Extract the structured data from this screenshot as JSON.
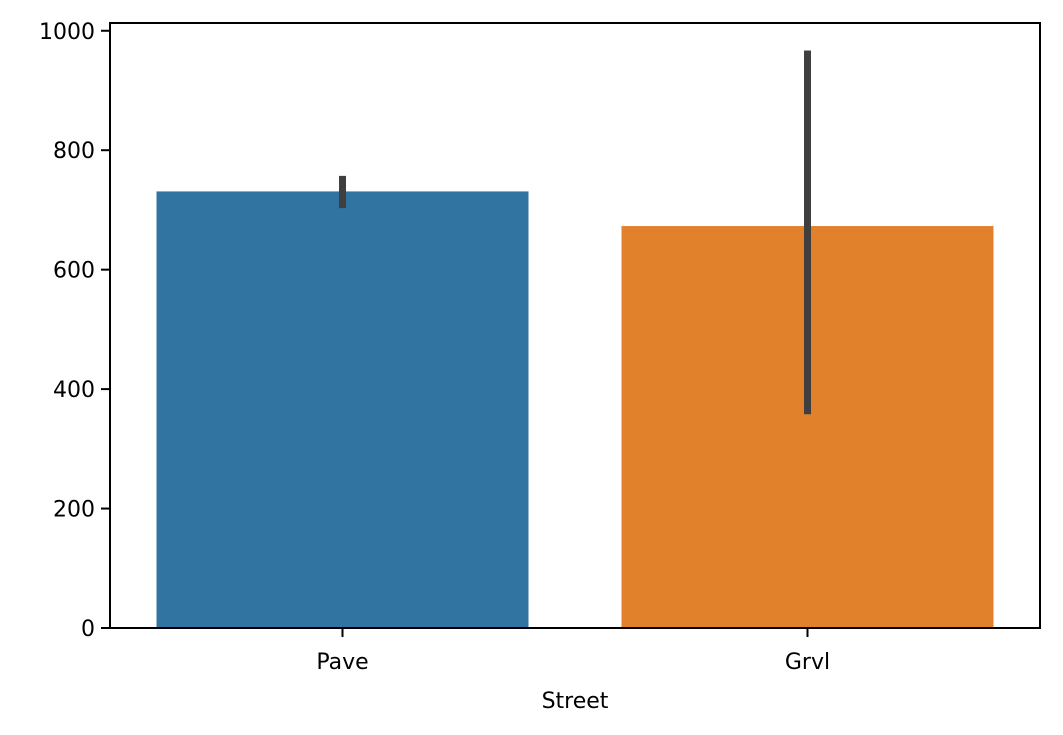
{
  "chart_data": {
    "type": "bar",
    "title": "",
    "xlabel": "Street",
    "ylabel": "",
    "categories": [
      "Pave",
      "Grvl"
    ],
    "values": [
      731,
      673
    ],
    "error_bars": [
      {
        "low": 703,
        "high": 757
      },
      {
        "low": 358,
        "high": 967
      }
    ],
    "ylim": [
      0,
      1013
    ],
    "yticks": [
      0,
      200,
      400,
      600,
      800,
      1000
    ],
    "grid": false,
    "legend": "none",
    "colors": {
      "bars": [
        "#3274a1",
        "#e1812c"
      ],
      "error_bar": "#3f3f3f",
      "axes": "#000000"
    }
  }
}
